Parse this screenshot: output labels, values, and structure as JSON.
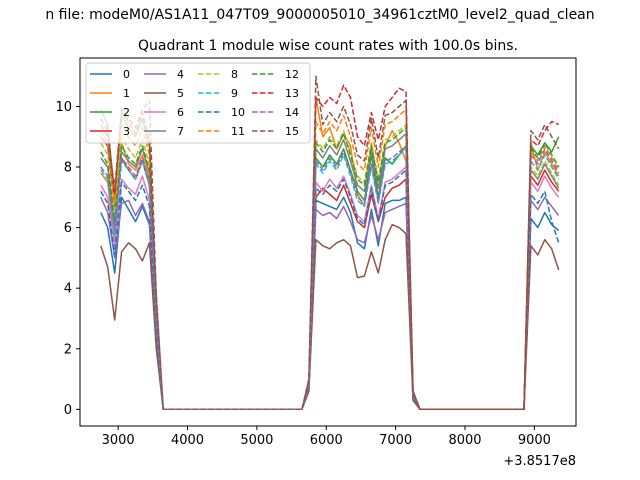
{
  "chart_data": {
    "type": "line",
    "suptitle": "n file: modeM0/AS1A11_047T09_9000005010_34961cztM0_level2_quad_clean",
    "title": "Quadrant 1 module wise count rates with 100.0s bins.",
    "xlabel": "",
    "ylabel": "",
    "x_offset_label": "+3.8517e8",
    "xlim": [
      2450,
      9600
    ],
    "ylim": [
      -0.55,
      11.6
    ],
    "xticks": [
      "3000",
      "4000",
      "5000",
      "6000",
      "7000",
      "8000",
      "9000"
    ],
    "yticks": [
      "0",
      "2",
      "4",
      "6",
      "8",
      "10"
    ],
    "legend_location": "upper-left",
    "x": [
      2750,
      2850,
      2950,
      3050,
      3150,
      3250,
      3350,
      3450,
      3550,
      3650,
      3750,
      3850,
      3950,
      4050,
      4150,
      4250,
      4350,
      4450,
      4550,
      4650,
      4750,
      4850,
      4950,
      5050,
      5150,
      5250,
      5350,
      5450,
      5550,
      5650,
      5750,
      5850,
      5950,
      6050,
      6150,
      6250,
      6350,
      6450,
      6550,
      6650,
      6750,
      6850,
      6950,
      7050,
      7150,
      7250,
      7350,
      7450,
      7550,
      7650,
      7750,
      7850,
      7950,
      8050,
      8150,
      8250,
      8350,
      8450,
      8550,
      8650,
      8750,
      8850,
      8950,
      9050,
      9150,
      9250,
      9350
    ],
    "series": [
      {
        "name": "0",
        "color": "#1f77b4",
        "dash": "solid",
        "values": [
          6.5,
          6.0,
          4.5,
          7.0,
          6.6,
          6.2,
          6.7,
          6.1,
          2.4,
          0.0,
          0.0,
          0.0,
          0.0,
          0.0,
          0.0,
          0.0,
          0.0,
          0.0,
          0.0,
          0.0,
          0.0,
          0.0,
          0.0,
          0.0,
          0.0,
          0.0,
          0.0,
          0.0,
          0.0,
          0.0,
          0.7,
          6.9,
          6.8,
          6.7,
          6.6,
          7.0,
          6.5,
          5.5,
          5.3,
          6.6,
          5.4,
          6.8,
          6.9,
          6.9,
          7.0,
          0.4,
          0.0,
          0.0,
          0.0,
          0.0,
          0.0,
          0.0,
          0.0,
          0.0,
          0.0,
          0.0,
          0.0,
          0.0,
          0.0,
          0.0,
          0.0,
          0.0,
          6.3,
          6.0,
          6.5,
          6.1,
          5.9
        ]
      },
      {
        "name": "1",
        "color": "#ff7f0e",
        "dash": "solid",
        "values": [
          7.8,
          7.5,
          5.5,
          8.8,
          8.1,
          7.9,
          8.4,
          7.6,
          3.0,
          0.0,
          0.0,
          0.0,
          0.0,
          0.0,
          0.0,
          0.0,
          0.0,
          0.0,
          0.0,
          0.0,
          0.0,
          0.0,
          0.0,
          0.0,
          0.0,
          0.0,
          0.0,
          0.0,
          0.0,
          0.0,
          0.8,
          10.3,
          9.0,
          9.3,
          8.6,
          9.1,
          8.7,
          7.1,
          6.7,
          8.8,
          6.8,
          8.7,
          9.2,
          8.8,
          8.2,
          0.5,
          0.0,
          0.0,
          0.0,
          0.0,
          0.0,
          0.0,
          0.0,
          0.0,
          0.0,
          0.0,
          0.0,
          0.0,
          0.0,
          0.0,
          0.0,
          0.0,
          8.8,
          7.9,
          8.5,
          8.1,
          7.7
        ]
      },
      {
        "name": "2",
        "color": "#2ca02c",
        "dash": "solid",
        "values": [
          9.9,
          9.4,
          7.0,
          9.7,
          9.3,
          9.0,
          9.6,
          8.7,
          3.6,
          0.0,
          0.0,
          0.0,
          0.0,
          0.0,
          0.0,
          0.0,
          0.0,
          0.0,
          0.0,
          0.0,
          0.0,
          0.0,
          0.0,
          0.0,
          0.0,
          0.0,
          0.0,
          0.0,
          0.0,
          0.0,
          0.9,
          8.3,
          8.0,
          8.4,
          8.1,
          8.6,
          7.9,
          7.2,
          6.9,
          8.4,
          7.0,
          8.3,
          8.1,
          8.4,
          8.7,
          0.5,
          0.0,
          0.0,
          0.0,
          0.0,
          0.0,
          0.0,
          0.0,
          0.0,
          0.0,
          0.0,
          0.0,
          0.0,
          0.0,
          0.0,
          0.0,
          0.0,
          8.7,
          8.4,
          8.8,
          8.5,
          9.0
        ]
      },
      {
        "name": "3",
        "color": "#d62728",
        "dash": "solid",
        "values": [
          9.0,
          8.7,
          6.7,
          8.3,
          7.9,
          7.6,
          8.2,
          7.4,
          3.0,
          0.0,
          0.0,
          0.0,
          0.0,
          0.0,
          0.0,
          0.0,
          0.0,
          0.0,
          0.0,
          0.0,
          0.0,
          0.0,
          0.0,
          0.0,
          0.0,
          0.0,
          0.0,
          0.0,
          0.0,
          0.0,
          0.8,
          7.0,
          7.3,
          7.1,
          6.9,
          7.4,
          6.8,
          6.2,
          6.0,
          7.1,
          6.2,
          7.0,
          7.3,
          7.4,
          7.6,
          0.5,
          0.0,
          0.0,
          0.0,
          0.0,
          0.0,
          0.0,
          0.0,
          0.0,
          0.0,
          0.0,
          0.0,
          0.0,
          0.0,
          0.0,
          0.0,
          0.0,
          7.7,
          7.4,
          7.9,
          7.5,
          7.2
        ]
      },
      {
        "name": "4",
        "color": "#9467bd",
        "dash": "solid",
        "values": [
          7.0,
          6.5,
          5.0,
          6.8,
          6.9,
          6.4,
          6.8,
          6.2,
          2.5,
          0.0,
          0.0,
          0.0,
          0.0,
          0.0,
          0.0,
          0.0,
          0.0,
          0.0,
          0.0,
          0.0,
          0.0,
          0.0,
          0.0,
          0.0,
          0.0,
          0.0,
          0.0,
          0.0,
          0.0,
          0.0,
          0.7,
          6.6,
          6.4,
          6.5,
          6.3,
          6.7,
          6.2,
          5.6,
          5.5,
          6.4,
          5.6,
          6.5,
          6.6,
          6.7,
          6.8,
          0.4,
          0.0,
          0.0,
          0.0,
          0.0,
          0.0,
          0.0,
          0.0,
          0.0,
          0.0,
          0.0,
          0.0,
          0.0,
          0.0,
          0.0,
          0.0,
          0.0,
          6.9,
          6.6,
          7.0,
          6.7,
          6.4
        ]
      },
      {
        "name": "5",
        "color": "#8c564b",
        "dash": "solid",
        "values": [
          5.4,
          4.7,
          2.95,
          5.2,
          5.5,
          5.3,
          4.9,
          5.5,
          2.0,
          0.0,
          0.0,
          0.0,
          0.0,
          0.0,
          0.0,
          0.0,
          0.0,
          0.0,
          0.0,
          0.0,
          0.0,
          0.0,
          0.0,
          0.0,
          0.0,
          0.0,
          0.0,
          0.0,
          0.0,
          0.0,
          0.6,
          5.6,
          5.4,
          5.3,
          5.5,
          5.6,
          5.4,
          4.35,
          4.4,
          5.2,
          4.5,
          5.6,
          6.1,
          6.0,
          5.8,
          0.3,
          0.0,
          0.0,
          0.0,
          0.0,
          0.0,
          0.0,
          0.0,
          0.0,
          0.0,
          0.0,
          0.0,
          0.0,
          0.0,
          0.0,
          0.0,
          0.0,
          5.4,
          5.1,
          5.6,
          5.3,
          4.6
        ]
      },
      {
        "name": "6",
        "color": "#e377c2",
        "dash": "solid",
        "values": [
          7.4,
          7.0,
          5.4,
          7.6,
          7.3,
          7.1,
          7.7,
          6.9,
          2.7,
          0.0,
          0.0,
          0.0,
          0.0,
          0.0,
          0.0,
          0.0,
          0.0,
          0.0,
          0.0,
          0.0,
          0.0,
          0.0,
          0.0,
          0.0,
          0.0,
          0.0,
          0.0,
          0.0,
          0.0,
          0.0,
          0.8,
          7.5,
          7.2,
          7.6,
          7.3,
          7.7,
          7.1,
          6.4,
          6.2,
          7.4,
          6.3,
          7.5,
          7.6,
          7.8,
          8.0,
          0.5,
          0.0,
          0.0,
          0.0,
          0.0,
          0.0,
          0.0,
          0.0,
          0.0,
          0.0,
          0.0,
          0.0,
          0.0,
          0.0,
          0.0,
          0.0,
          0.0,
          7.5,
          7.2,
          7.7,
          7.3,
          7.0
        ]
      },
      {
        "name": "7",
        "color": "#7f7f7f",
        "dash": "solid",
        "values": [
          8.3,
          8.0,
          6.0,
          8.5,
          8.2,
          8.0,
          8.6,
          7.8,
          3.1,
          0.0,
          0.0,
          0.0,
          0.0,
          0.0,
          0.0,
          0.0,
          0.0,
          0.0,
          0.0,
          0.0,
          0.0,
          0.0,
          0.0,
          0.0,
          0.0,
          0.0,
          0.0,
          0.0,
          0.0,
          0.0,
          0.9,
          8.6,
          8.3,
          8.7,
          8.4,
          8.9,
          8.2,
          7.4,
          7.2,
          8.5,
          7.3,
          8.6,
          8.7,
          8.9,
          9.1,
          0.5,
          0.0,
          0.0,
          0.0,
          0.0,
          0.0,
          0.0,
          0.0,
          0.0,
          0.0,
          0.0,
          0.0,
          0.0,
          0.0,
          0.0,
          0.0,
          0.0,
          7.9,
          7.6,
          8.1,
          7.7,
          7.3
        ]
      },
      {
        "name": "8",
        "color": "#bcbd22",
        "dash": "dashed",
        "values": [
          8.8,
          8.4,
          6.4,
          9.0,
          8.6,
          8.3,
          8.9,
          8.1,
          3.3,
          0.0,
          0.0,
          0.0,
          0.0,
          0.0,
          0.0,
          0.0,
          0.0,
          0.0,
          0.0,
          0.0,
          0.0,
          0.0,
          0.0,
          0.0,
          0.0,
          0.0,
          0.0,
          0.0,
          0.0,
          0.0,
          0.9,
          8.9,
          8.6,
          9.0,
          8.7,
          9.2,
          8.5,
          7.7,
          7.5,
          8.8,
          7.6,
          8.9,
          9.0,
          9.2,
          9.4,
          0.6,
          0.0,
          0.0,
          0.0,
          0.0,
          0.0,
          0.0,
          0.0,
          0.0,
          0.0,
          0.0,
          0.0,
          0.0,
          0.0,
          0.0,
          0.0,
          0.0,
          8.0,
          7.7,
          8.2,
          7.8,
          7.4
        ]
      },
      {
        "name": "9",
        "color": "#17becf",
        "dash": "dashed",
        "values": [
          7.9,
          7.6,
          5.7,
          8.2,
          7.9,
          7.6,
          8.2,
          7.4,
          2.9,
          0.0,
          0.0,
          0.0,
          0.0,
          0.0,
          0.0,
          0.0,
          0.0,
          0.0,
          0.0,
          0.0,
          0.0,
          0.0,
          0.0,
          0.0,
          0.0,
          0.0,
          0.0,
          0.0,
          0.0,
          0.0,
          0.8,
          8.1,
          7.8,
          8.2,
          7.9,
          8.4,
          7.7,
          6.9,
          6.7,
          8.0,
          6.8,
          8.1,
          8.2,
          8.4,
          8.6,
          0.5,
          0.0,
          0.0,
          0.0,
          0.0,
          0.0,
          0.0,
          0.0,
          0.0,
          0.0,
          0.0,
          0.0,
          0.0,
          0.0,
          0.0,
          0.0,
          0.0,
          8.2,
          7.9,
          8.4,
          8.0,
          7.6
        ]
      },
      {
        "name": "10",
        "color": "#1f77b4",
        "dash": "dashed",
        "values": [
          7.2,
          6.8,
          5.1,
          7.5,
          7.2,
          6.9,
          7.4,
          6.7,
          2.6,
          0.0,
          0.0,
          0.0,
          0.0,
          0.0,
          0.0,
          0.0,
          0.0,
          0.0,
          0.0,
          0.0,
          0.0,
          0.0,
          0.0,
          0.0,
          0.0,
          0.0,
          0.0,
          0.0,
          0.0,
          0.0,
          0.8,
          7.3,
          7.1,
          7.4,
          7.2,
          7.6,
          7.0,
          6.3,
          6.1,
          7.3,
          6.2,
          7.4,
          7.5,
          7.7,
          7.9,
          0.4,
          0.0,
          0.0,
          0.0,
          0.0,
          0.0,
          0.0,
          0.0,
          0.0,
          0.0,
          0.0,
          0.0,
          0.0,
          0.0,
          0.0,
          0.0,
          0.0,
          7.1,
          6.8,
          7.2,
          6.2,
          5.5
        ]
      },
      {
        "name": "11",
        "color": "#ff7f0e",
        "dash": "dashed",
        "values": [
          9.2,
          8.8,
          6.8,
          9.4,
          9.0,
          8.7,
          9.3,
          8.4,
          3.4,
          0.0,
          0.0,
          0.0,
          0.0,
          0.0,
          0.0,
          0.0,
          0.0,
          0.0,
          0.0,
          0.0,
          0.0,
          0.0,
          0.0,
          0.0,
          0.0,
          0.0,
          0.0,
          0.0,
          0.0,
          0.0,
          0.9,
          9.5,
          9.1,
          9.5,
          9.2,
          9.7,
          9.0,
          8.1,
          7.9,
          9.3,
          8.0,
          9.4,
          9.5,
          9.7,
          9.9,
          0.6,
          0.0,
          0.0,
          0.0,
          0.0,
          0.0,
          0.0,
          0.0,
          0.0,
          0.0,
          0.0,
          0.0,
          0.0,
          0.0,
          0.0,
          0.0,
          0.0,
          8.5,
          8.2,
          8.7,
          8.3,
          7.9
        ]
      },
      {
        "name": "12",
        "color": "#2ca02c",
        "dash": "dashed",
        "values": [
          8.5,
          8.1,
          6.2,
          8.7,
          8.3,
          8.1,
          8.7,
          7.9,
          3.2,
          0.0,
          0.0,
          0.0,
          0.0,
          0.0,
          0.0,
          0.0,
          0.0,
          0.0,
          0.0,
          0.0,
          0.0,
          0.0,
          0.0,
          0.0,
          0.0,
          0.0,
          0.0,
          0.0,
          0.0,
          0.0,
          0.9,
          8.8,
          8.5,
          8.9,
          8.6,
          9.1,
          8.4,
          7.6,
          7.4,
          8.7,
          7.5,
          8.8,
          8.9,
          9.1,
          9.3,
          0.5,
          0.0,
          0.0,
          0.0,
          0.0,
          0.0,
          0.0,
          0.0,
          0.0,
          0.0,
          0.0,
          0.0,
          0.0,
          0.0,
          0.0,
          0.0,
          0.0,
          8.6,
          8.3,
          8.8,
          8.4,
          8.0
        ]
      },
      {
        "name": "13",
        "color": "#d62728",
        "dash": "dashed",
        "values": [
          9.6,
          9.2,
          7.1,
          9.8,
          9.5,
          9.1,
          9.8,
          8.9,
          3.6,
          0.0,
          0.0,
          0.0,
          0.0,
          0.0,
          0.0,
          0.0,
          0.0,
          0.0,
          0.0,
          0.0,
          0.0,
          0.0,
          0.0,
          0.0,
          0.0,
          0.0,
          0.0,
          0.0,
          0.0,
          0.0,
          1.0,
          10.3,
          10.0,
          10.3,
          10.1,
          10.7,
          10.3,
          9.0,
          8.7,
          9.8,
          8.9,
          10.0,
          10.3,
          10.6,
          10.5,
          0.6,
          0.0,
          0.0,
          0.0,
          0.0,
          0.0,
          0.0,
          0.0,
          0.0,
          0.0,
          0.0,
          0.0,
          0.0,
          0.0,
          0.0,
          0.0,
          0.0,
          8.9,
          8.7,
          9.2,
          9.5,
          9.4
        ]
      },
      {
        "name": "14",
        "color": "#9467bd",
        "dash": "dashed",
        "values": [
          8.0,
          7.7,
          5.9,
          8.3,
          8.0,
          7.7,
          8.3,
          7.5,
          3.0,
          0.0,
          0.0,
          0.0,
          0.0,
          0.0,
          0.0,
          0.0,
          0.0,
          0.0,
          0.0,
          0.0,
          0.0,
          0.0,
          0.0,
          0.0,
          0.0,
          0.0,
          0.0,
          0.0,
          0.0,
          0.0,
          0.8,
          8.2,
          7.9,
          8.3,
          8.0,
          8.5,
          7.8,
          7.0,
          6.8,
          8.1,
          6.9,
          8.2,
          8.3,
          8.5,
          8.7,
          0.5,
          0.0,
          0.0,
          0.0,
          0.0,
          0.0,
          0.0,
          0.0,
          0.0,
          0.0,
          0.0,
          0.0,
          0.0,
          0.0,
          0.0,
          0.0,
          0.0,
          8.4,
          8.1,
          8.6,
          8.2,
          7.8
        ]
      },
      {
        "name": "15",
        "color": "#8c564b",
        "dash": "dashed",
        "values": [
          9.4,
          9.0,
          7.3,
          9.9,
          9.6,
          9.3,
          9.9,
          10.2,
          3.8,
          0.0,
          0.0,
          0.0,
          0.0,
          0.0,
          0.0,
          0.0,
          0.0,
          0.0,
          0.0,
          0.0,
          0.0,
          0.0,
          0.0,
          0.0,
          0.0,
          0.0,
          0.0,
          0.0,
          0.0,
          0.0,
          1.0,
          11.0,
          9.4,
          9.8,
          9.5,
          10.0,
          9.4,
          8.4,
          8.2,
          9.6,
          8.3,
          9.7,
          9.8,
          10.0,
          10.2,
          0.6,
          0.0,
          0.0,
          0.0,
          0.0,
          0.0,
          0.0,
          0.0,
          0.0,
          0.0,
          0.0,
          0.0,
          0.0,
          0.0,
          0.0,
          0.0,
          0.0,
          9.2,
          8.9,
          9.4,
          9.0,
          8.6
        ]
      }
    ]
  }
}
